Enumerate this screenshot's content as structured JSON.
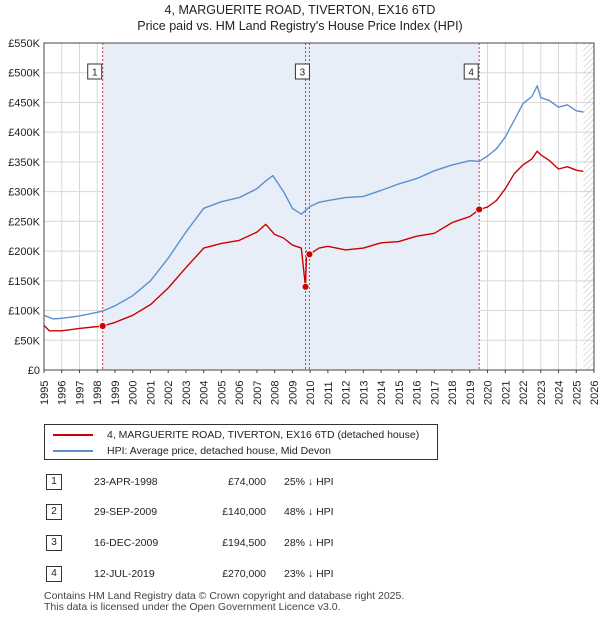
{
  "title_line1": "4, MARGUERITE ROAD, TIVERTON, EX16 6TD",
  "title_line2": "Price paid vs. HM Land Registry's House Price Index (HPI)",
  "chart_data": {
    "type": "line",
    "title": "4, MARGUERITE ROAD, TIVERTON, EX16 6TD — Price paid vs. HM Land Registry's House Price Index (HPI)",
    "xlabel": "",
    "ylabel": "",
    "xlim": [
      1995,
      2026
    ],
    "ylim": [
      0,
      550000
    ],
    "y_ticks": [
      0,
      50000,
      100000,
      150000,
      200000,
      250000,
      300000,
      350000,
      400000,
      450000,
      500000,
      550000
    ],
    "y_tick_labels": [
      "£0",
      "£50K",
      "£100K",
      "£150K",
      "£200K",
      "£250K",
      "£300K",
      "£350K",
      "£400K",
      "£450K",
      "£500K",
      "£550K"
    ],
    "x_ticks": [
      1995,
      1996,
      1997,
      1998,
      1999,
      2000,
      2001,
      2002,
      2003,
      2004,
      2005,
      2006,
      2007,
      2008,
      2009,
      2010,
      2011,
      2012,
      2013,
      2014,
      2015,
      2016,
      2017,
      2018,
      2019,
      2020,
      2021,
      2022,
      2023,
      2024,
      2025,
      2026
    ],
    "x_tick_labels": [
      "1995",
      "1996",
      "1997",
      "1998",
      "1999",
      "2000",
      "2001",
      "2002",
      "2003",
      "2004",
      "2005",
      "2006",
      "2007",
      "2008",
      "2009",
      "2010",
      "2011",
      "2012",
      "2013",
      "2014",
      "2015",
      "2016",
      "2017",
      "2018",
      "2019",
      "2020",
      "2021",
      "2022",
      "2023",
      "2024",
      "2025",
      "2026"
    ],
    "shaded_period": [
      1998.31,
      2019.53
    ],
    "hatched_after": 2025.4,
    "series": [
      {
        "name": "4, MARGUERITE ROAD, TIVERTON, EX16 6TD (detached house)",
        "color": "#cc0000",
        "x": [
          1995.0,
          1995.3,
          1996,
          1997,
          1998.31,
          1999,
          2000,
          2001,
          2002,
          2003,
          2004,
          2005,
          2006,
          2007,
          2007.5,
          2008,
          2008.5,
          2009.0,
          2009.5,
          2009.74,
          2009.8,
          2009.96,
          2010.5,
          2011,
          2012,
          2013,
          2014,
          2015,
          2016,
          2017,
          2018,
          2019,
          2019.53,
          2020,
          2020.5,
          2021,
          2021.5,
          2022,
          2022.5,
          2022.8,
          2023,
          2023.5,
          2024,
          2024.5,
          2025,
          2025.4
        ],
        "values": [
          75000,
          66000,
          66000,
          70000,
          74000,
          80000,
          92000,
          110000,
          138000,
          172000,
          205000,
          213000,
          218000,
          232000,
          245000,
          228000,
          222000,
          210000,
          205000,
          140000,
          200000,
          194500,
          205000,
          208000,
          202000,
          205000,
          214000,
          216000,
          225000,
          230000,
          248000,
          258000,
          270000,
          274000,
          285000,
          305000,
          330000,
          345000,
          355000,
          368000,
          362000,
          352000,
          338000,
          342000,
          336000,
          334000
        ]
      },
      {
        "name": "HPI: Average price, detached house, Mid Devon",
        "color": "#5b8fd0",
        "x": [
          1995.0,
          1995.5,
          1996,
          1997,
          1998,
          1998.31,
          1999,
          2000,
          2001,
          2002,
          2003,
          2004,
          2005,
          2006,
          2007,
          2007.5,
          2007.9,
          2008.5,
          2009.0,
          2009.5,
          2010,
          2010.5,
          2011,
          2012,
          2013,
          2014,
          2015,
          2016,
          2017,
          2018,
          2019,
          2019.53,
          2020,
          2020.5,
          2021,
          2021.5,
          2022,
          2022.5,
          2022.8,
          2023,
          2023.5,
          2024,
          2024.5,
          2025,
          2025.4
        ],
        "values": [
          92000,
          86000,
          87000,
          91000,
          97000,
          99000,
          108000,
          125000,
          150000,
          188000,
          232000,
          272000,
          283000,
          290000,
          305000,
          318000,
          327000,
          300000,
          272000,
          262000,
          275000,
          282000,
          285000,
          290000,
          292000,
          302000,
          313000,
          322000,
          335000,
          345000,
          352000,
          351000,
          360000,
          372000,
          392000,
          420000,
          448000,
          460000,
          478000,
          458000,
          453000,
          442000,
          446000,
          436000,
          434000
        ]
      }
    ],
    "sale_markers": [
      {
        "label": "1",
        "x": 1998.31,
        "value": 74000
      },
      {
        "label": "2",
        "x": 2009.74,
        "value": 140000
      },
      {
        "label": "3",
        "x": 2009.96,
        "value": 194500
      },
      {
        "label": "4",
        "x": 2019.53,
        "value": 270000
      }
    ],
    "chart_badges": [
      {
        "label": "1",
        "x": 1998.31,
        "side": "left"
      },
      {
        "label": "3",
        "x": 2009.96,
        "side": "right"
      },
      {
        "label": "4",
        "x": 2019.53,
        "side": "left"
      }
    ]
  },
  "legend": {
    "property_label": "4, MARGUERITE ROAD, TIVERTON, EX16 6TD (detached house)",
    "hpi_label": "HPI: Average price, detached house, Mid Devon",
    "property_color": "#cc0000",
    "hpi_color": "#5b8fd0"
  },
  "sales": [
    {
      "num": "1",
      "date": "23-APR-1998",
      "price": "£74,000",
      "hpi": "25% ↓ HPI"
    },
    {
      "num": "2",
      "date": "29-SEP-2009",
      "price": "£140,000",
      "hpi": "48% ↓ HPI"
    },
    {
      "num": "3",
      "date": "16-DEC-2009",
      "price": "£194,500",
      "hpi": "28% ↓ HPI"
    },
    {
      "num": "4",
      "date": "12-JUL-2019",
      "price": "£270,000",
      "hpi": "23% ↓ HPI"
    }
  ],
  "footer_line1": "Contains HM Land Registry data © Crown copyright and database right 2025.",
  "footer_line2": "This data is licensed under the Open Government Licence v3.0."
}
